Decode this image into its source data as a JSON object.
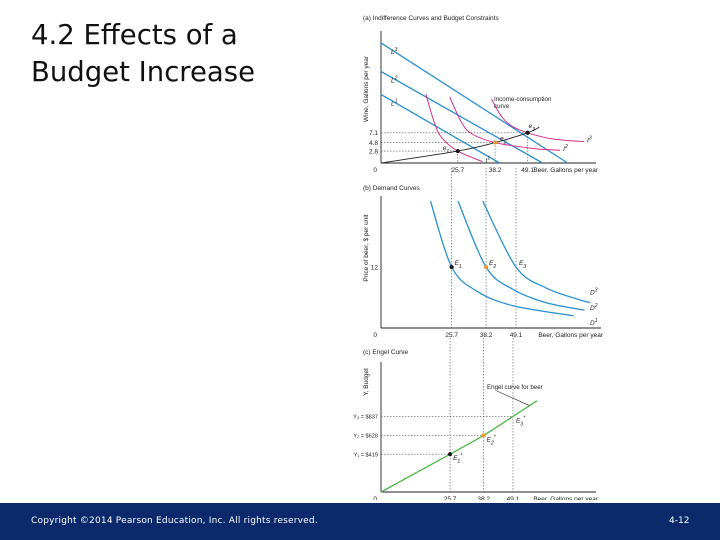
{
  "slide": {
    "title_line1": "4.2  Effects of a",
    "title_line2": "Budget Increase",
    "copyright": "Copyright ©2014 Pearson Education, Inc. All rights reserved.",
    "page": "4-12"
  },
  "colors": {
    "budget_line": "#2a8fd0",
    "demand": "#2a8fd0",
    "indifference": "#d1308a",
    "engel": "#4db848",
    "point_e1": "#1a1a1a",
    "point_e2": "#e99a2c",
    "point_e3": "#1a1a1a",
    "footer": "#0c2a6b"
  },
  "chart_data": [
    {
      "type": "line",
      "title": "(a) Indifference Curves and Budget Constraints",
      "ylabel": "Wine, Gallons per year",
      "xlabel": "Beer, Gallons per year",
      "origin_label": "0",
      "x_ticks": [
        25.7,
        38.2,
        49.1
      ],
      "y_ticks": [
        2.8,
        4.8,
        7.1
      ],
      "x_tick_labels": [
        "25.7",
        "38.2",
        "49.1"
      ],
      "y_tick_labels": [
        "2.8",
        "4.8",
        "7.1"
      ],
      "budget_lines": [
        {
          "name": "L",
          "sup": "1",
          "y_intercept": 16.1,
          "x_intercept": 39.7
        },
        {
          "name": "L",
          "sup": "2",
          "y_intercept": 21.5,
          "x_intercept": 54.1
        },
        {
          "name": "L",
          "sup": "3",
          "y_intercept": 28.2,
          "x_intercept": 62.5
        }
      ],
      "indifference_curves": [
        {
          "name": "I",
          "sup": "1",
          "points": [
            [
              15,
              16.2
            ],
            [
              18,
              9.2
            ],
            [
              20.5,
              5.8
            ],
            [
              25.7,
              2.8
            ],
            [
              34,
              0.3
            ]
          ]
        },
        {
          "name": "I",
          "sup": "2",
          "points": [
            [
              23,
              15.5
            ],
            [
              27,
              9.5
            ],
            [
              30.5,
              6.8
            ],
            [
              38.2,
              4.8
            ],
            [
              51,
              3.4
            ],
            [
              60,
              3.0
            ]
          ]
        },
        {
          "name": "I",
          "sup": "3",
          "points": [
            [
              37,
              15.0
            ],
            [
              40.5,
              10.8
            ],
            [
              44,
              8.6
            ],
            [
              49.1,
              7.1
            ],
            [
              57,
              5.7
            ],
            [
              68,
              5.0
            ]
          ]
        }
      ],
      "equilibria": [
        {
          "name": "e",
          "sub": "1",
          "x": 25.7,
          "y": 2.8
        },
        {
          "name": "e",
          "sub": "2",
          "x": 38.2,
          "y": 4.8
        },
        {
          "name": "e",
          "sub": "3",
          "x": 49.1,
          "y": 7.1
        }
      ],
      "income_consumption_curve": [
        [
          0,
          0
        ],
        [
          25.7,
          2.8
        ],
        [
          38.2,
          4.8
        ],
        [
          49.1,
          7.1
        ],
        [
          53,
          8.4
        ]
      ],
      "annotations": [
        "Income-consumption",
        "curve"
      ],
      "xlim": [
        0,
        72
      ],
      "ylim": [
        0,
        31
      ]
    },
    {
      "type": "line",
      "title": "(b) Demand Curves",
      "ylabel": "Price of beer, $ per unit",
      "xlabel": "Beer, Gallons per year",
      "origin_label": "0",
      "x_ticks": [
        25.7,
        38.2,
        49.1
      ],
      "x_tick_labels": [
        "25.7",
        "38.2",
        "49.1"
      ],
      "y_ticks": [
        12
      ],
      "y_tick_labels": [
        "12"
      ],
      "series": [
        {
          "name": "D",
          "sup": "1",
          "points": [
            [
              18,
              25
            ],
            [
              25.7,
              12
            ],
            [
              35,
              7.2
            ],
            [
              48,
              4.4
            ],
            [
              70,
              2.4
            ]
          ]
        },
        {
          "name": "D",
          "sup": "2",
          "points": [
            [
              28,
              25
            ],
            [
              38.2,
              12
            ],
            [
              48,
              7.6
            ],
            [
              60,
              5.0
            ],
            [
              74,
              3.5
            ]
          ]
        },
        {
          "name": "D",
          "sup": "3",
          "points": [
            [
              37,
              25
            ],
            [
              49.1,
              12
            ],
            [
              60,
              7.9
            ],
            [
              72,
              5.6
            ],
            [
              76,
              5.0
            ]
          ]
        }
      ],
      "points": [
        {
          "name": "E",
          "sub": "1",
          "x": 25.7,
          "y": 12
        },
        {
          "name": "E",
          "sub": "2",
          "x": 38.2,
          "y": 12
        },
        {
          "name": "E",
          "sub": "3",
          "x": 49.1,
          "y": 12
        }
      ],
      "xlim": [
        0,
        80
      ],
      "ylim": [
        0,
        26
      ]
    },
    {
      "type": "line",
      "title": "(c) Engel Curve",
      "ylabel": "Y, Budget",
      "xlabel": "Beer, Gallons per year",
      "origin_label": "0",
      "x_ticks": [
        25.7,
        38.2,
        49.1
      ],
      "x_tick_labels": [
        "25.7",
        "38.2",
        "49.1"
      ],
      "y_ticks": [
        419,
        628,
        837
      ],
      "y_tick_labels": [
        "Y₁ = $419",
        "Y₂ = $628",
        "Y₃ = $837"
      ],
      "series": [
        {
          "name": "Engel curve for beer",
          "points": [
            [
              0,
              0
            ],
            [
              25.7,
              419
            ],
            [
              38.2,
              628
            ],
            [
              49.1,
              837
            ],
            [
              58,
              1010
            ]
          ]
        }
      ],
      "points": [
        {
          "name": "E",
          "sub": "1",
          "sup": "*",
          "x": 25.7,
          "y": 419
        },
        {
          "name": "E",
          "sub": "2",
          "sup": "*",
          "x": 38.2,
          "y": 628
        },
        {
          "name": "E",
          "sub": "3",
          "sup": "*",
          "x": 49.1,
          "y": 837
        }
      ],
      "legend_label": "Engel curve for beer",
      "xlim": [
        0,
        80
      ],
      "ylim": [
        0,
        1440
      ]
    }
  ]
}
